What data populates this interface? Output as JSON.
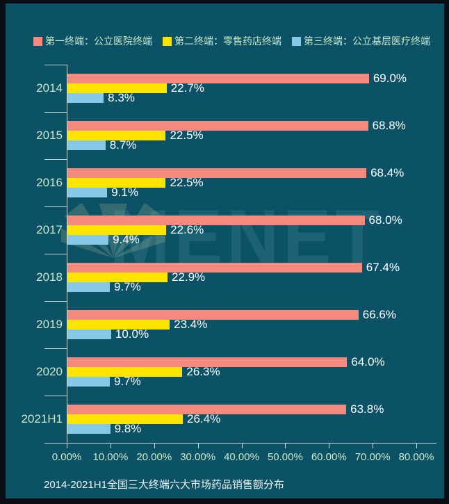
{
  "page": {
    "background_color": "#0b5266",
    "frame_color": "#0a0e14",
    "text_color_labels": "#cde9c9",
    "text_color_values": "#ffffff",
    "axis_color": "#c8ddd4"
  },
  "legend": {
    "items": [
      {
        "label": "第一终端：公立医院终端",
        "color": "#f48a7d"
      },
      {
        "label": "第二终端：零售药店终端",
        "color": "#ffe400"
      },
      {
        "label": "第三终端：公立基层医疗终端",
        "color": "#85c9e7"
      }
    ]
  },
  "watermark": {
    "text": "MENET"
  },
  "caption": "2014-2021H1全国三大终端六大市场药品销售额分布",
  "chart_data": {
    "type": "bar",
    "orientation": "horizontal",
    "title": "2014-2021H1全国三大终端六大市场药品销售额分布",
    "categories": [
      "2014",
      "2015",
      "2016",
      "2017",
      "2018",
      "2019",
      "2020",
      "2021H1"
    ],
    "series": [
      {
        "name": "第一终端：公立医院终端",
        "color": "#f48a7d",
        "values": [
          69.0,
          68.8,
          68.4,
          68.0,
          67.4,
          66.6,
          64.0,
          63.8
        ]
      },
      {
        "name": "第二终端：零售药店终端",
        "color": "#ffe400",
        "values": [
          22.7,
          22.5,
          22.5,
          22.6,
          22.9,
          23.4,
          26.3,
          26.4
        ]
      },
      {
        "name": "第三终端：公立基层医疗终端",
        "color": "#85c9e7",
        "values": [
          8.3,
          8.7,
          9.1,
          9.4,
          9.7,
          10.0,
          9.7,
          9.8
        ]
      }
    ],
    "data_labels": true,
    "value_label_format": "0.0%",
    "x_axis": {
      "min": 0,
      "max": 80,
      "tick_step": 10,
      "ticks": [
        "0.00%",
        "10.00%",
        "20.00%",
        "30.00%",
        "40.00%",
        "50.00%",
        "60.00%",
        "70.00%",
        "80.00%"
      ]
    },
    "grid": false,
    "legend_position": "top"
  }
}
